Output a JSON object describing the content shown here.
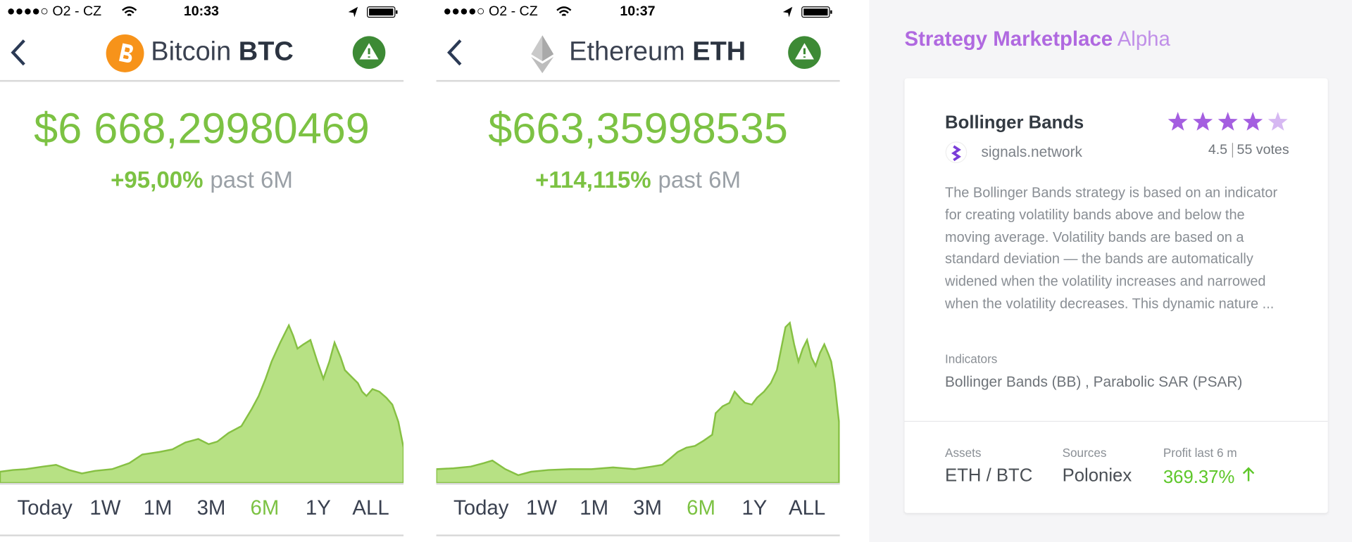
{
  "phones": [
    {
      "carrier": "●●●●○ O2 - CZ",
      "time": "10:33",
      "coin_name": "Bitcoin",
      "coin_symbol": "BTC",
      "price": "$6 668,29980469",
      "change": "+95,00%",
      "period": "past 6M",
      "ranges": [
        "Today",
        "1W",
        "1M",
        "3M",
        "6M",
        "1Y",
        "ALL"
      ],
      "active_range": 4
    },
    {
      "carrier": "●●●●○ O2 - CZ",
      "time": "10:37",
      "coin_name": "Ethereum",
      "coin_symbol": "ETH",
      "price": "$663,35998535",
      "change": "+114,115%",
      "period": "past 6M",
      "ranges": [
        "Today",
        "1W",
        "1M",
        "3M",
        "6M",
        "1Y",
        "ALL"
      ],
      "active_range": 4
    }
  ],
  "marketplace": {
    "title": "Strategy Marketplace",
    "title_suffix": "Alpha",
    "card": {
      "name": "Bollinger Bands",
      "source": "signals.network",
      "rating": 4.5,
      "votes": "55 votes",
      "description": "The Bollinger Bands strategy is based on an indicator for creating volatility bands above and below the moving average. Volatility bands are based on a standard deviation — the bands are automatically widened when the volatility increases and narrowed when the volatility decreases. This dynamic nature ...",
      "indicators_label": "Indicators",
      "indicators": "Bollinger Bands (BB) , Parabolic SAR (PSAR)",
      "assets_label": "Assets",
      "assets": "ETH / BTC",
      "sources_label": "Sources",
      "sources": "Poloniex",
      "profit_label": "Profit last 6 m",
      "profit": "369.37%"
    }
  }
}
